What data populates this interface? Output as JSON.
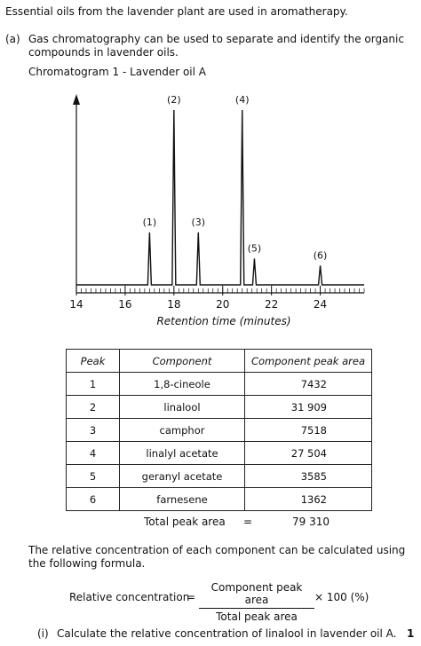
{
  "intro": "Essential oils from the lavender plant are used in aromatherapy.",
  "part_a": {
    "label": "(a)",
    "text_line1": "Gas chromatography can be used to separate and identify the organic",
    "text_line2": "compounds in lavender oils.",
    "chart_caption": "Chromatogram 1 - Lavender oil A"
  },
  "chart_data": {
    "type": "line",
    "title": "Chromatogram 1 - Lavender oil A",
    "xlabel": "Retention time (minutes)",
    "ylabel": "",
    "xlim": [
      14,
      25.8
    ],
    "ticks": [
      "14",
      "16",
      "18",
      "20",
      "22",
      "24"
    ],
    "tick_values": [
      14,
      16,
      18,
      20,
      22,
      24
    ],
    "peaks": [
      {
        "label": "(1)",
        "x": 17.0,
        "height": 0.3
      },
      {
        "label": "(2)",
        "x": 18.0,
        "height": 1.0
      },
      {
        "label": "(3)",
        "x": 19.0,
        "height": 0.3
      },
      {
        "label": "(4)",
        "x": 20.8,
        "height": 1.0
      },
      {
        "label": "(5)",
        "x": 21.3,
        "height": 0.15
      },
      {
        "label": "(6)",
        "x": 24.0,
        "height": 0.11
      }
    ]
  },
  "table": {
    "headers": [
      "Peak",
      "Component",
      "Component peak area"
    ],
    "rows": [
      [
        "1",
        "1,8-cineole",
        "7432"
      ],
      [
        "2",
        "linalool",
        "31 909"
      ],
      [
        "3",
        "camphor",
        "7518"
      ],
      [
        "4",
        "linalyl acetate",
        "27 504"
      ],
      [
        "5",
        "geranyl acetate",
        "3585"
      ],
      [
        "6",
        "farnesene",
        "1362"
      ]
    ],
    "total_label": "Total peak area",
    "total_eq": "=",
    "total_value": "79 310"
  },
  "formula_intro_line1": "The relative concentration of each component can be calculated using",
  "formula_intro_line2": "the following formula.",
  "formula": {
    "lhs": "Relative concentration",
    "eq": "=",
    "numerator": "Component peak area",
    "denominator": "Total peak area",
    "times": "× 100 (%)"
  },
  "question_i": {
    "label": "(i)",
    "text": "Calculate the relative concentration of linalool in lavender oil A.",
    "marks": "1"
  }
}
